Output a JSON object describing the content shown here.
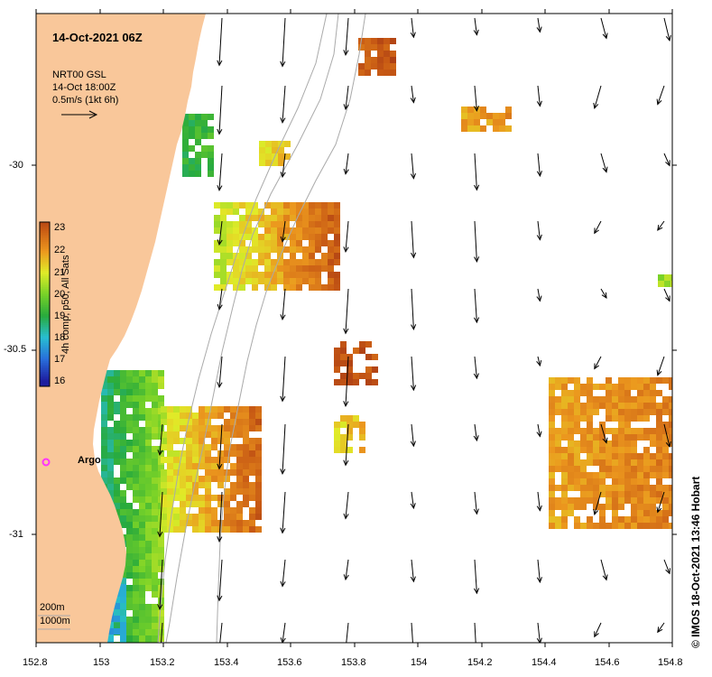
{
  "map": {
    "title": "14-Oct-2021 06Z",
    "product_lines": [
      "NRT00 GSL",
      "14-Oct 18:00Z",
      "0.5m/s (1kt 6h)"
    ],
    "platform_label": "Argo",
    "depth_labels": [
      "200m",
      "1000m"
    ],
    "credit": "© IMOS 18-Oct-2021 13:46 Hobart",
    "colorbar_title": "4h comp, p50, All Sats",
    "colorbar_ticks": [
      "23",
      "22",
      "21",
      "20",
      "19",
      "18",
      "17",
      "16"
    ],
    "lon_labels": [
      "152.8",
      "153",
      "153.2",
      "153.4",
      "153.6",
      "153.8",
      "154",
      "154.2",
      "154.4",
      "154.6",
      "154.8"
    ],
    "lat_labels": [
      "-30",
      "-30.5",
      "-31"
    ],
    "colors": {
      "land": "#f9c79a",
      "arrow": "#000000",
      "contour": "#999999",
      "argo": "#ff33ff"
    },
    "icons": {
      "argo": "argo-float-marker",
      "vector_key": "vector-scale-arrow-icon"
    }
  }
}
